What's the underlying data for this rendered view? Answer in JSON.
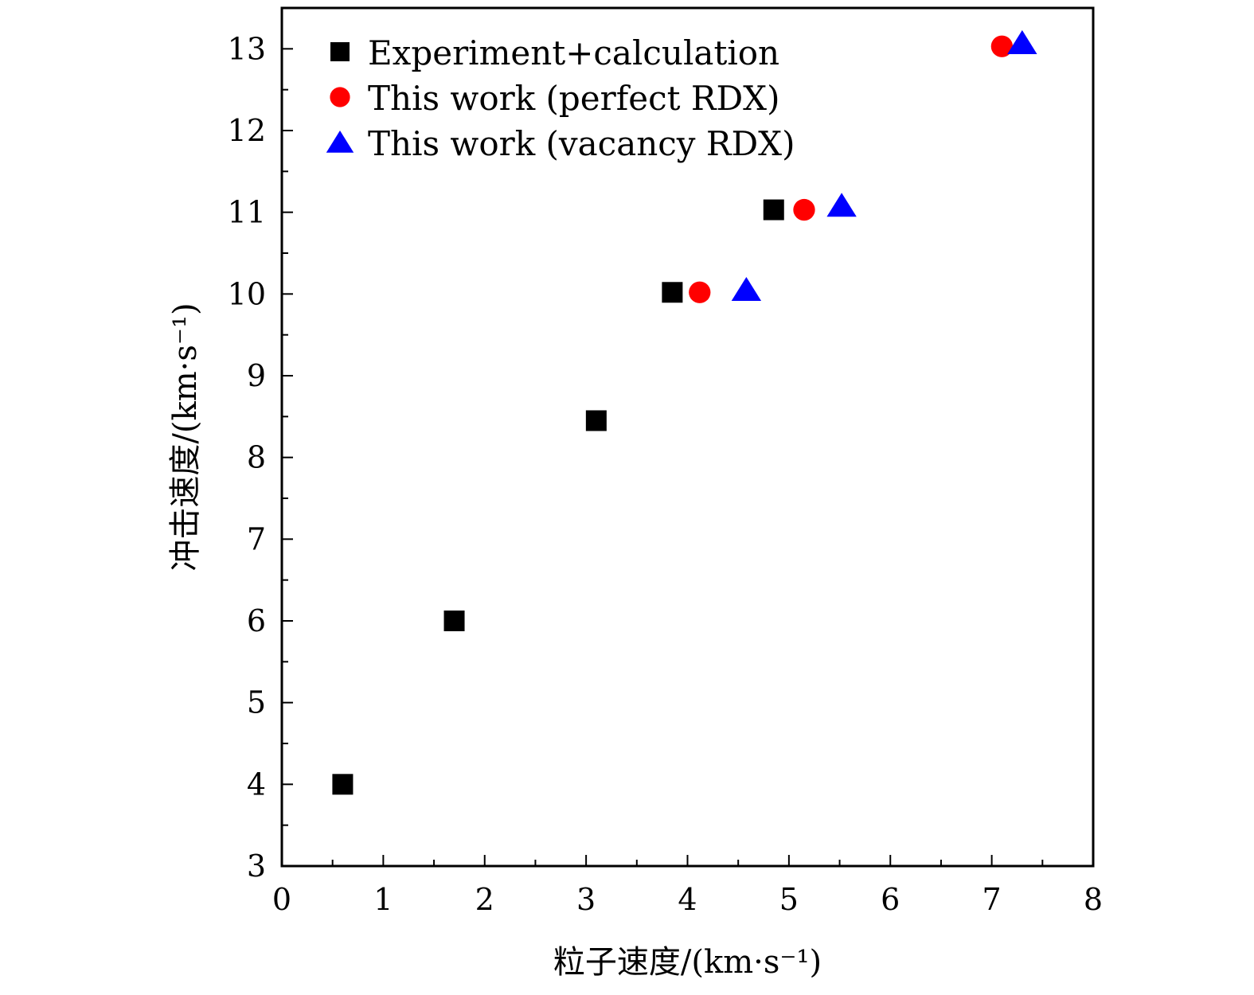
{
  "chart_data": {
    "type": "scatter",
    "title": "",
    "xlabel": "粒子速度/(km·s⁻¹)",
    "ylabel": "冲击速度/(km·s⁻¹)",
    "xlim": [
      0,
      8
    ],
    "ylim": [
      3,
      13.5
    ],
    "x_ticks": [
      "0",
      "1",
      "2",
      "3",
      "4",
      "5",
      "6",
      "7",
      "8"
    ],
    "y_ticks": [
      "3",
      "4",
      "5",
      "6",
      "7",
      "8",
      "9",
      "10",
      "11",
      "12",
      "13"
    ],
    "grid": false,
    "legend_position": "top-left",
    "series": [
      {
        "name": "Experiment+calculation",
        "marker": "square",
        "color": "#000000",
        "points": [
          [
            0.6,
            4.0
          ],
          [
            1.7,
            6.0
          ],
          [
            3.1,
            8.45
          ],
          [
            3.85,
            10.02
          ],
          [
            4.85,
            11.03
          ]
        ]
      },
      {
        "name": "This work (perfect RDX)",
        "marker": "circle",
        "color": "#ff0000",
        "points": [
          [
            4.12,
            10.02
          ],
          [
            5.15,
            11.03
          ],
          [
            7.1,
            13.03
          ]
        ]
      },
      {
        "name": "This work (vacancy RDX)",
        "marker": "triangle",
        "color": "#0000ff",
        "points": [
          [
            4.58,
            10.05
          ],
          [
            5.52,
            11.08
          ],
          [
            7.3,
            13.07
          ]
        ]
      }
    ]
  }
}
